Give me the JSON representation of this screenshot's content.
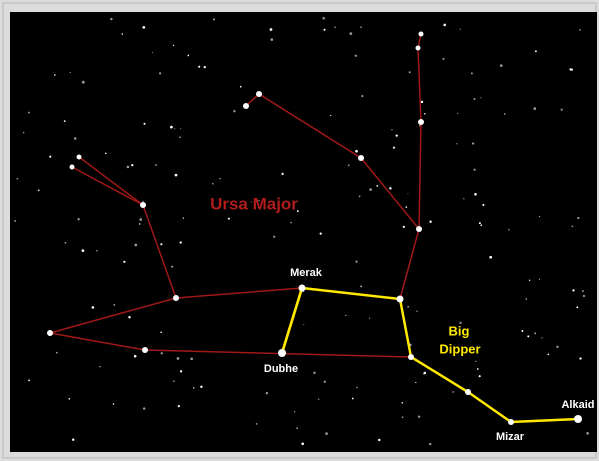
{
  "title": "Ursa Major",
  "stars": {
    "merak": "Merak",
    "dubhe": "Dubhe",
    "mizar": "Mizar",
    "alkaid": "Alkaid"
  },
  "asterism": {
    "line1": "Big",
    "line2": "Dipper"
  }
}
